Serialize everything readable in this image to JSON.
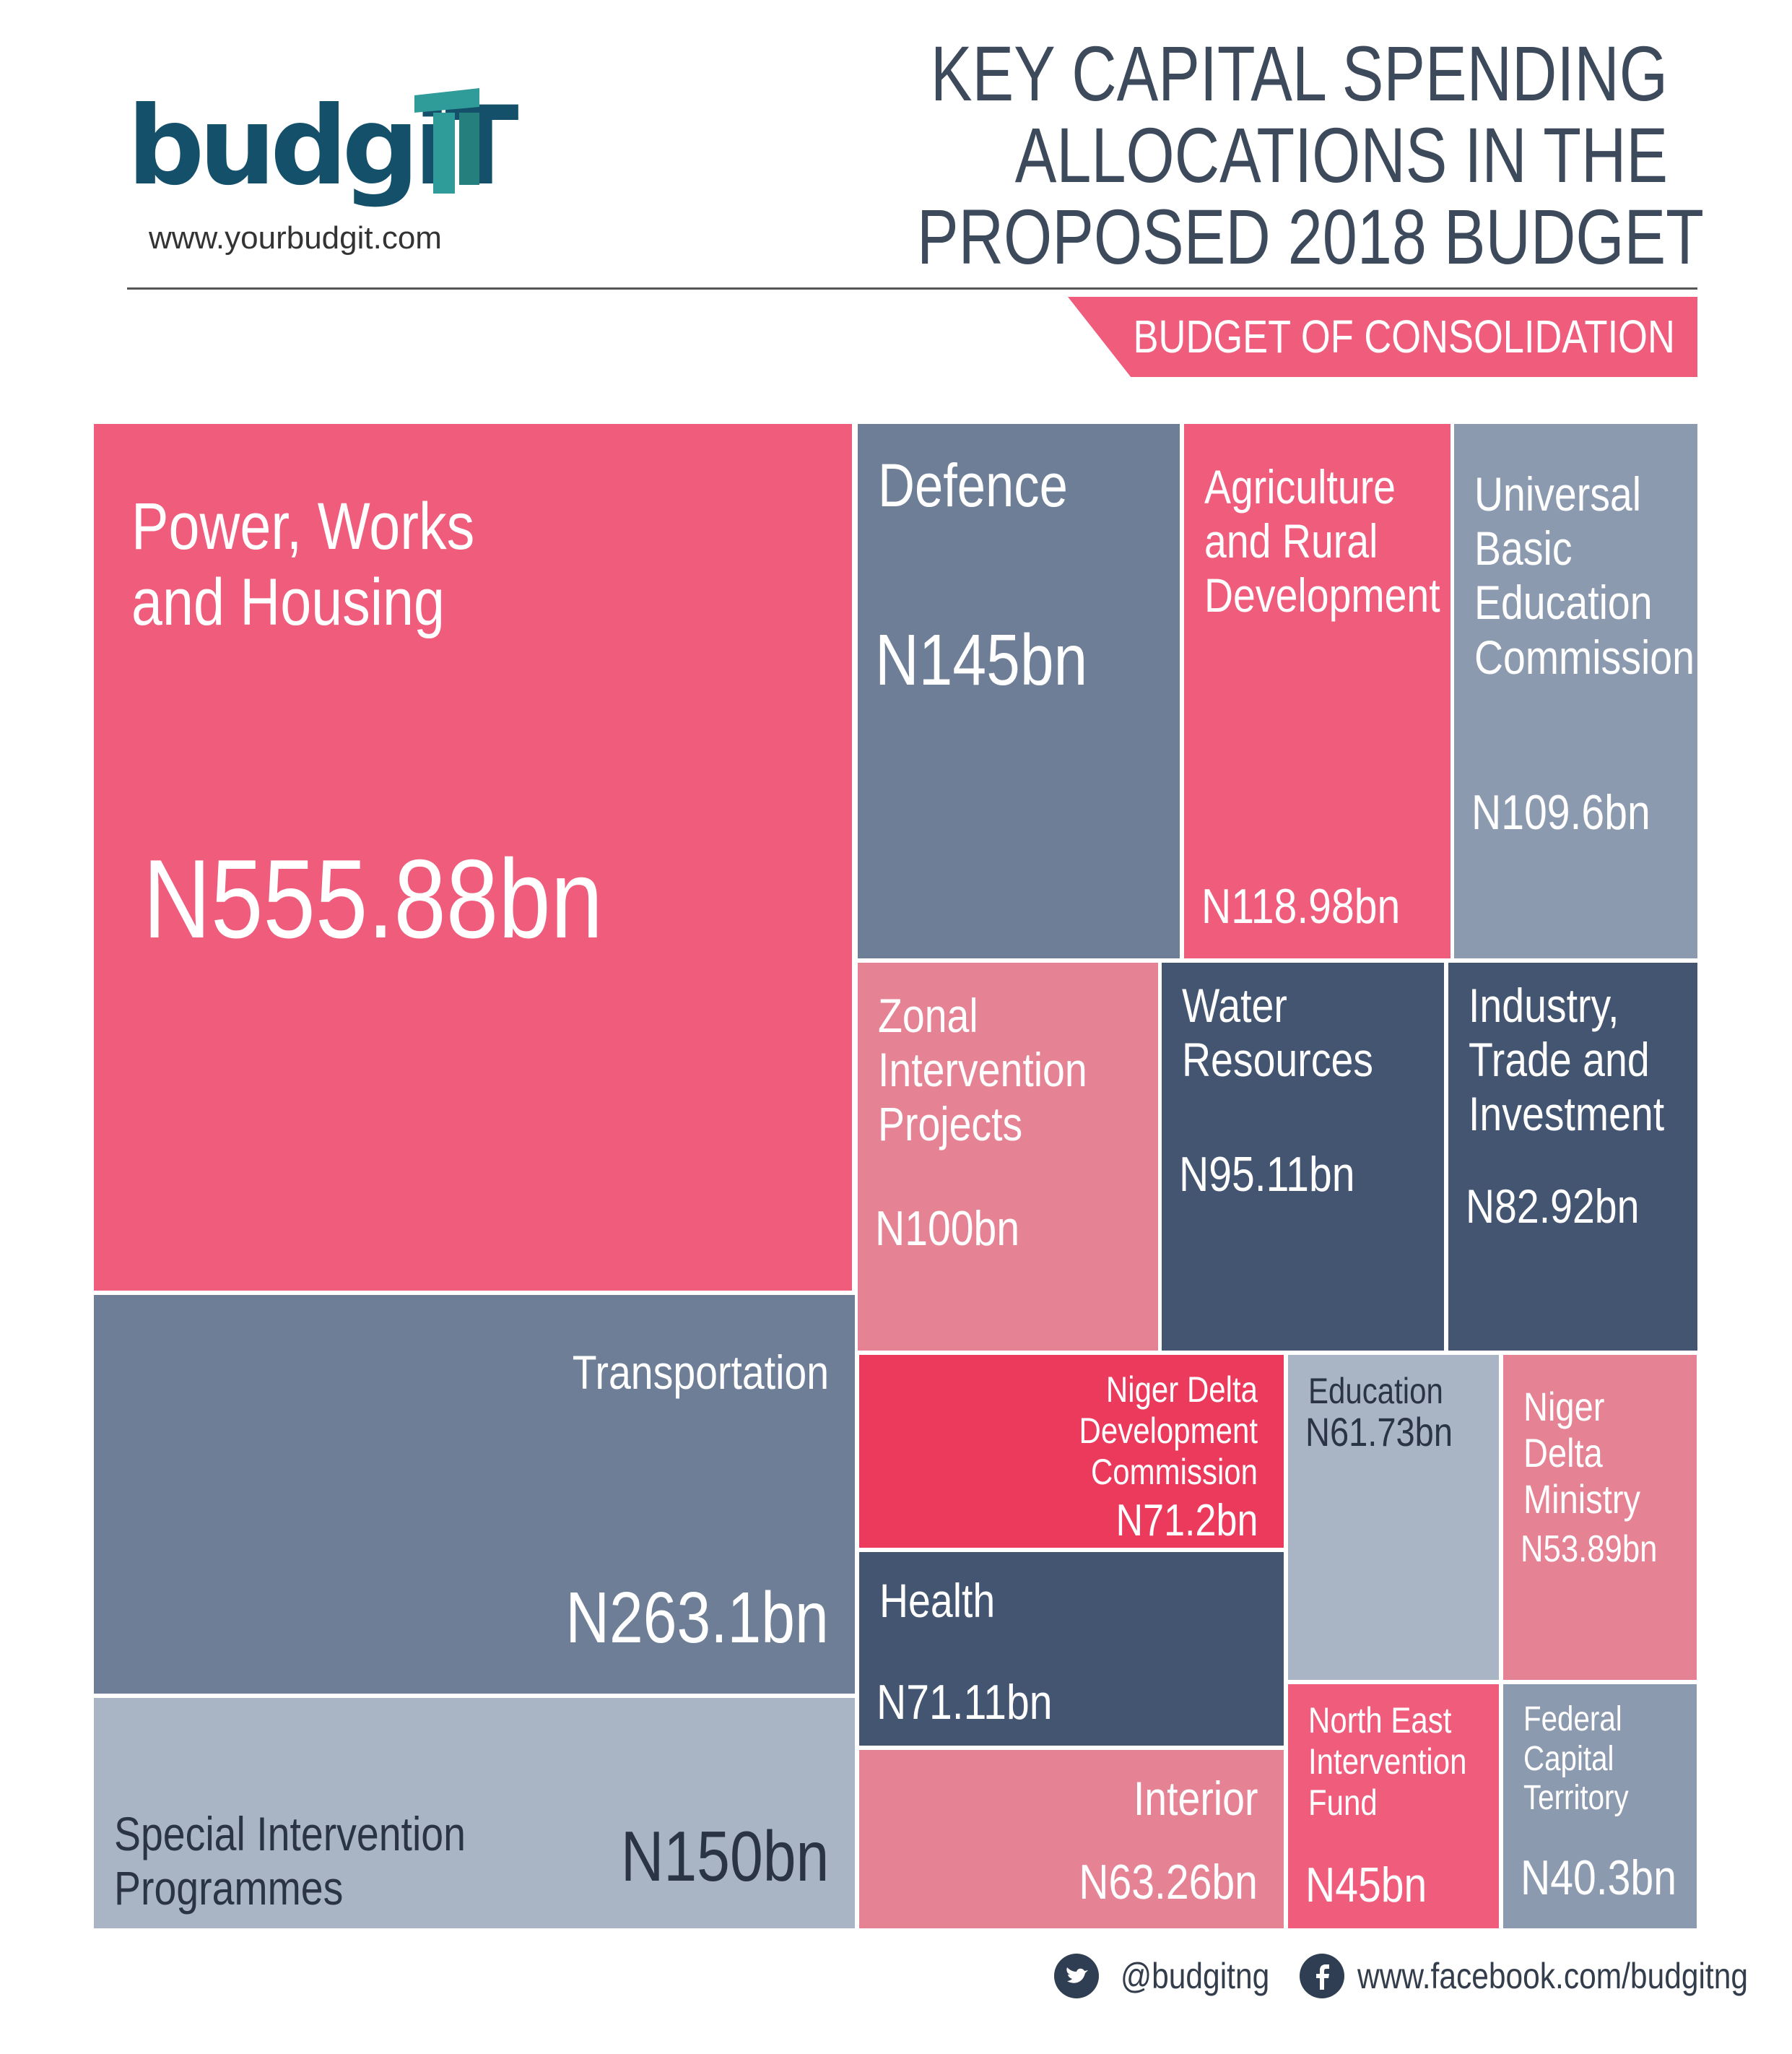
{
  "header": {
    "logo_text": "budgiT",
    "logo_url": "www.yourbudgit.com",
    "title_lines": [
      "KEY CAPITAL SPENDING",
      "ALLOCATIONS IN THE",
      "PROPOSED 2018 BUDGET"
    ],
    "ribbon": "BUDGET OF CONSOLIDATION"
  },
  "colors": {
    "pink": "#ef5c7c",
    "light_pink": "#e58395",
    "red": "#ec3a5d",
    "slate": "#6d7e96",
    "light_slate": "#8c9ab0",
    "pale_slate": "#a9b4c5",
    "dark_slate": "#435570",
    "navy": "#2f3e52",
    "teal": "#2f9c9a",
    "brand_blue": "#14506a"
  },
  "chart_data": {
    "type": "treemap",
    "title": "KEY CAPITAL SPENDING ALLOCATIONS IN THE PROPOSED 2018 BUDGET",
    "subtitle": "BUDGET OF CONSOLIDATION",
    "unit": "N bn",
    "items": [
      {
        "label": "Power, Works\nand Housing",
        "value": 555.88,
        "value_label": "N555.88bn"
      },
      {
        "label": "Transportation",
        "value": 263.1,
        "value_label": "N263.1bn"
      },
      {
        "label": "Special Intervention\nProgrammes",
        "value": 150,
        "value_label": "N150bn"
      },
      {
        "label": "Defence",
        "value": 145,
        "value_label": "N145bn"
      },
      {
        "label": "Agriculture\nand Rural\nDevelopment",
        "value": 118.98,
        "value_label": "N118.98bn"
      },
      {
        "label": "Universal\nBasic\nEducation\nCommission",
        "value": 109.6,
        "value_label": "N109.6bn"
      },
      {
        "label": "Zonal\nIntervention\nProjects",
        "value": 100,
        "value_label": "N100bn"
      },
      {
        "label": "Water\nResources",
        "value": 95.11,
        "value_label": "N95.11bn"
      },
      {
        "label": "Industry,\nTrade and\nInvestment",
        "value": 82.92,
        "value_label": "N82.92bn"
      },
      {
        "label": "Niger Delta Development\nCommission",
        "value": 71.2,
        "value_label": "N71.2bn"
      },
      {
        "label": "Health",
        "value": 71.11,
        "value_label": "N71.11bn"
      },
      {
        "label": "Interior",
        "value": 63.26,
        "value_label": "N63.26bn"
      },
      {
        "label": "Education",
        "value": 61.73,
        "value_label": "N61.73bn"
      },
      {
        "label": "Niger\nDelta\nMinistry",
        "value": 53.89,
        "value_label": "N53.89bn"
      },
      {
        "label": "North East\nIntervention\nFund",
        "value": 45,
        "value_label": "N45bn"
      },
      {
        "label": "Federal\nCapital\nTerritory",
        "value": 40.3,
        "value_label": "N40.3bn"
      }
    ]
  },
  "footer": {
    "twitter_icon": "twitter-icon",
    "twitter": "@budgitng",
    "facebook_icon": "facebook-icon",
    "facebook": "www.facebook.com/budgitng"
  }
}
